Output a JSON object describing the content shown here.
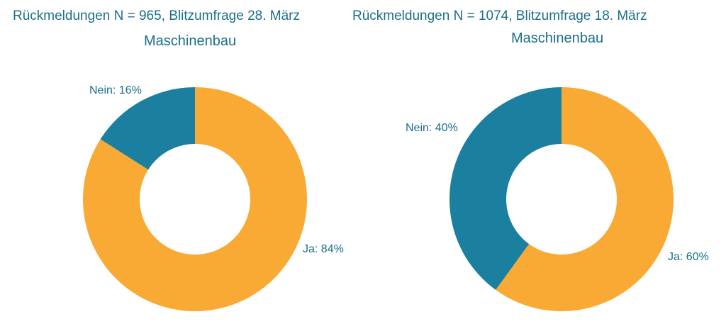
{
  "colors": {
    "ja": "#f9aa35",
    "nein": "#1b7fa0",
    "text": "#1b6f8a"
  },
  "chart_data": [
    {
      "type": "pie",
      "title": "Rückmeldungen N = 965, Blitzumfrage 28. März",
      "subtitle": "Maschinenbau",
      "slices": [
        {
          "name": "Ja",
          "value": 84,
          "label": "Ja: 84%"
        },
        {
          "name": "Nein",
          "value": 16,
          "label": "Nein: 16%"
        }
      ]
    },
    {
      "type": "pie",
      "title": "Rückmeldungen N = 1074, Blitzumfrage 18. März",
      "subtitle": "Maschinenbau",
      "slices": [
        {
          "name": "Ja",
          "value": 60,
          "label": "Ja: 60%"
        },
        {
          "name": "Nein",
          "value": 40,
          "label": "Nein: 40%"
        }
      ]
    }
  ]
}
